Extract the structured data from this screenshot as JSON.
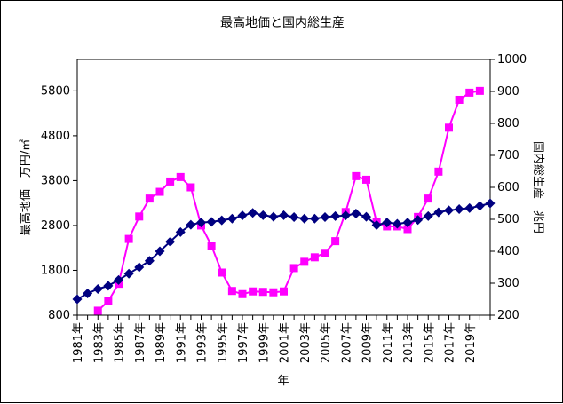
{
  "chart_data": {
    "type": "line",
    "title": "最高地価と国内総生産",
    "xlabel": "年",
    "ylabel_left": "最高地価　万円/㎡",
    "ylabel_right": "国内総生産　兆円",
    "x": [
      1981,
      1982,
      1983,
      1984,
      1985,
      1986,
      1987,
      1988,
      1989,
      1990,
      1991,
      1992,
      1993,
      1994,
      1995,
      1996,
      1997,
      1998,
      1999,
      2000,
      2001,
      2002,
      2003,
      2004,
      2005,
      2006,
      2007,
      2008,
      2009,
      2010,
      2011,
      2012,
      2013,
      2014,
      2015,
      2016,
      2017,
      2018,
      2019,
      2020,
      2021
    ],
    "x_tick_labels": [
      "1981年",
      "1983年",
      "1985年",
      "1987年",
      "1989年",
      "1991年",
      "1993年",
      "1995年",
      "1997年",
      "1999年",
      "2001年",
      "2003年",
      "2005年",
      "2007年",
      "2009年",
      "2011年",
      "2013年",
      "2015年",
      "2017年",
      "2019年"
    ],
    "y_left_ticks": [
      "800",
      "1800",
      "2800",
      "3800",
      "4800",
      "5800"
    ],
    "y_right_ticks": [
      "200",
      "300",
      "400",
      "500",
      "600",
      "700",
      "800",
      "900",
      "1000"
    ],
    "ylim_left": [
      800,
      6500
    ],
    "ylim_right": [
      200,
      1000
    ],
    "grid": false,
    "legend": "none",
    "series": [
      {
        "axis": "left",
        "color": "#FF00FF",
        "marker": "square",
        "values": [
          null,
          null,
          900,
          1110,
          1500,
          2500,
          3000,
          3400,
          3550,
          3780,
          3880,
          3650,
          2800,
          2350,
          1750,
          1340,
          1270,
          1330,
          1320,
          1310,
          1330,
          1850,
          1990,
          2090,
          2190,
          2450,
          3100,
          3900,
          3820,
          2870,
          2780,
          2780,
          2720,
          2990,
          3400,
          4000,
          4980,
          5600,
          5760,
          5800,
          null
        ]
      },
      {
        "axis": "right",
        "color": "#000080",
        "marker": "diamond",
        "values": [
          250,
          268,
          282,
          292,
          310,
          330,
          350,
          370,
          400,
          430,
          460,
          483,
          490,
          492,
          497,
          502,
          512,
          520,
          513,
          508,
          513,
          507,
          502,
          502,
          507,
          510,
          512,
          518,
          508,
          482,
          490,
          486,
          490,
          498,
          510,
          522,
          528,
          532,
          535,
          542,
          550
        ]
      }
    ]
  }
}
